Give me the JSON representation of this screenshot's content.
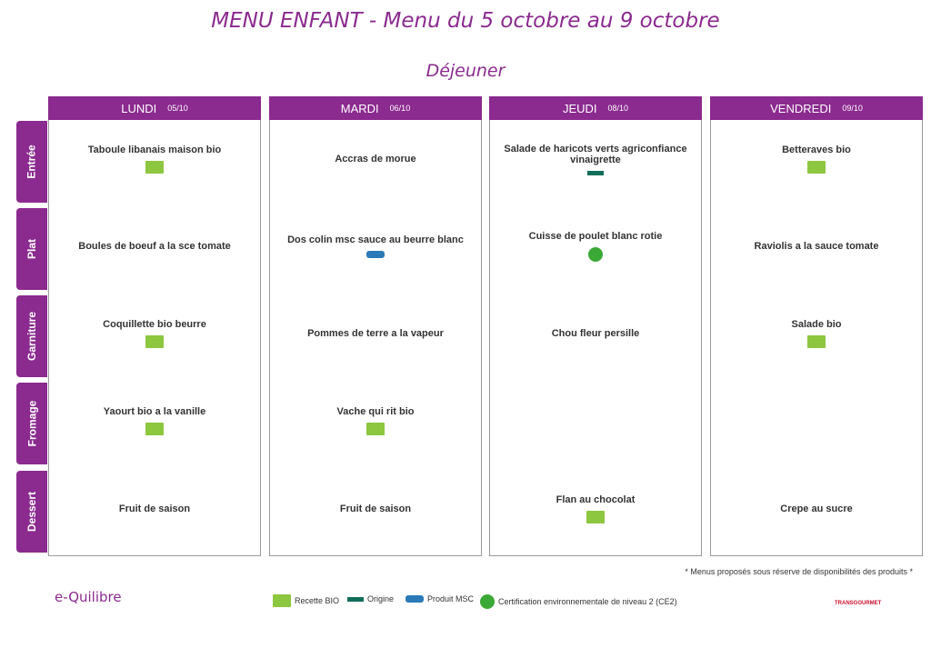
{
  "header": {
    "title": "MENU ENFANT - Menu du 5 octobre au 9 octobre",
    "subtitle": "Déjeuner"
  },
  "menu": {
    "rows": [
      "Entrée",
      "Plat",
      "Garniture",
      "Fromage",
      "Dessert"
    ],
    "days": [
      {
        "name": "LUNDI",
        "date": "05/10",
        "items": [
          "Taboule libanais maison bio",
          "Boules de boeuf a la sce tomate",
          "Coquillette bio beurre",
          "Yaourt bio a la vanille",
          "Fruit de saison"
        ]
      },
      {
        "name": "MARDI",
        "date": "06/10",
        "items": [
          "Accras de morue",
          "Dos colin msc sauce au beurre blanc",
          "Pommes de terre a la vapeur",
          "Vache qui rit bio",
          "Fruit de saison"
        ]
      },
      {
        "name": "JEUDI",
        "date": "08/10",
        "items": [
          "Salade de haricots verts agriconfiance vinaigrette",
          "Cuisse de poulet blanc rotie",
          "Chou fleur persille",
          null,
          "Flan au chocolat"
        ]
      },
      {
        "name": "VENDREDI",
        "date": "09/10",
        "items": [
          "Betteraves bio",
          "Raviolis a la sauce tomate",
          "Salade bio",
          null,
          "Crepe au sucre"
        ]
      }
    ]
  },
  "footer": {
    "note": "* Menus proposés sous réserve de disponibilités des produits *",
    "brand": "e-Quilibre",
    "partner": "TRANSGOURMET",
    "legend": [
      "Recette BIO",
      "Origine",
      "Produit MSC",
      "Certification environnementale de niveau 2 (CE2)"
    ]
  }
}
